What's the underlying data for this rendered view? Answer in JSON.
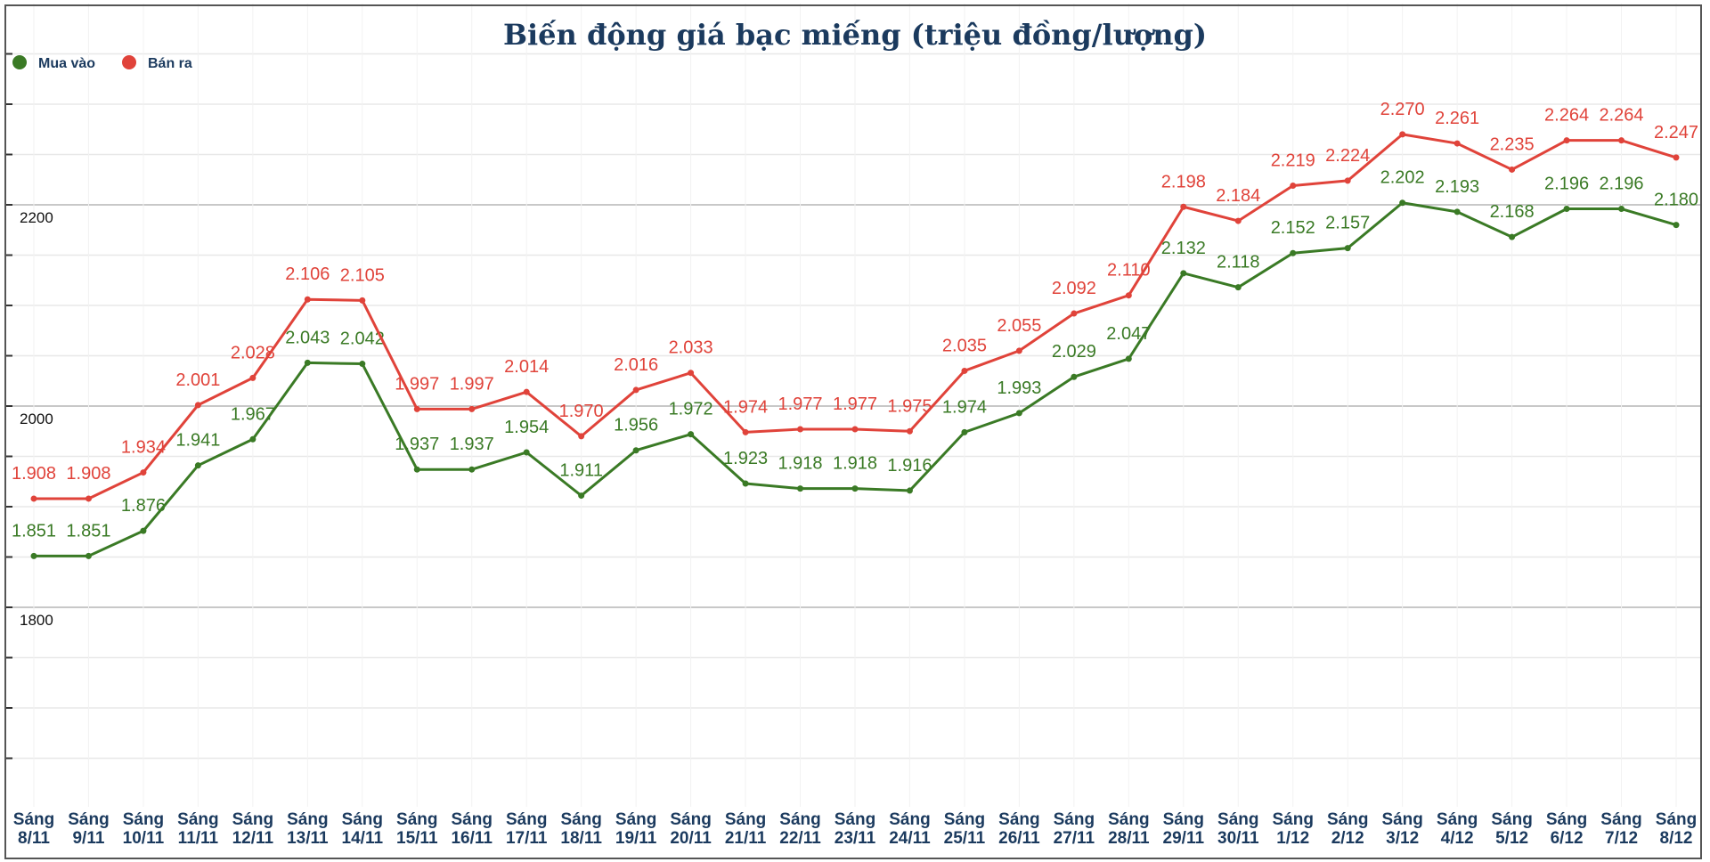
{
  "chart_data": {
    "type": "line",
    "title": "Biến động giá bạc miếng (triệu đồng/lượng)",
    "xlabel": "",
    "ylabel": "",
    "ylim": [
      1600,
      2400
    ],
    "yticks": [
      1800,
      2000,
      2200
    ],
    "grid": true,
    "legend_position": "top-left",
    "categories": [
      "Sáng 8/11",
      "Sáng 9/11",
      "Sáng 10/11",
      "Sáng 11/11",
      "Sáng 12/11",
      "Sáng 13/11",
      "Sáng 14/11",
      "Sáng 15/11",
      "Sáng 16/11",
      "Sáng 17/11",
      "Sáng 18/11",
      "Sáng 19/11",
      "Sáng 20/11",
      "Sáng 21/11",
      "Sáng 22/11",
      "Sáng 23/11",
      "Sáng 24/11",
      "Sáng 25/11",
      "Sáng 26/11",
      "Sáng 27/11",
      "Sáng 28/11",
      "Sáng 29/11",
      "Sáng 30/11",
      "Sáng 1/12",
      "Sáng 2/12",
      "Sáng 3/12",
      "Sáng 4/12",
      "Sáng 5/12",
      "Sáng 6/12",
      "Sáng 7/12",
      "Sáng 8/12"
    ],
    "series": [
      {
        "name": "Mua vào",
        "color": "#3a7a25",
        "values": [
          1851,
          1851,
          1876,
          1941,
          1967,
          2043,
          2042,
          1937,
          1937,
          1954,
          1911,
          1956,
          1972,
          1923,
          1918,
          1918,
          1916,
          1974,
          1993,
          2029,
          2047,
          2132,
          2118,
          2152,
          2157,
          2202,
          2193,
          2168,
          2196,
          2196,
          2180
        ]
      },
      {
        "name": "Bán ra",
        "color": "#e0433a",
        "values": [
          1908,
          1908,
          1934,
          2001,
          2028,
          2106,
          2105,
          1997,
          1997,
          2014,
          1970,
          2016,
          2033,
          1974,
          1977,
          1977,
          1975,
          2035,
          2055,
          2092,
          2110,
          2198,
          2184,
          2219,
          2224,
          2270,
          2261,
          2235,
          2264,
          2264,
          2247
        ]
      }
    ]
  }
}
